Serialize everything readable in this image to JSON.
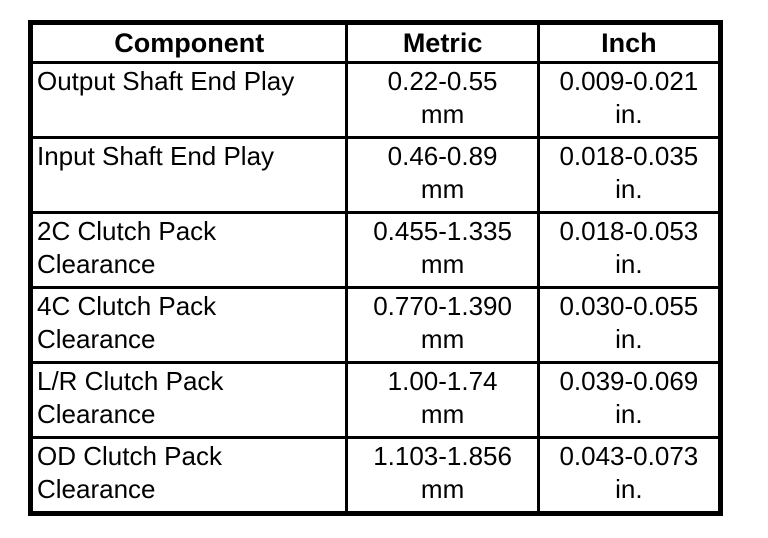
{
  "page": {
    "background": "#ffffff",
    "text_color": "#000000",
    "border_color": "#000000"
  },
  "table": {
    "columns": [
      {
        "label": "Component"
      },
      {
        "label": "Metric"
      },
      {
        "label": "Inch"
      }
    ],
    "rows": [
      {
        "component": "Output Shaft End Play",
        "metric_value": "0.22-0.55",
        "metric_unit": "mm",
        "inch_value": "0.009-0.021",
        "inch_unit": "in."
      },
      {
        "component": "Input Shaft End Play",
        "metric_value": "0.46-0.89",
        "metric_unit": "mm",
        "inch_value": "0.018-0.035",
        "inch_unit": "in."
      },
      {
        "component": "2C Clutch Pack Clearance",
        "metric_value": "0.455-1.335",
        "metric_unit": "mm",
        "inch_value": "0.018-0.053",
        "inch_unit": "in."
      },
      {
        "component": "4C Clutch Pack Clearance",
        "metric_value": "0.770-1.390",
        "metric_unit": "mm",
        "inch_value": "0.030-0.055",
        "inch_unit": "in."
      },
      {
        "component": "L/R Clutch Pack Clearance",
        "metric_value": "1.00-1.74",
        "metric_unit": "mm",
        "inch_value": "0.039-0.069",
        "inch_unit": "in."
      },
      {
        "component": "OD Clutch Pack Clearance",
        "metric_value": "1.103-1.856",
        "metric_unit": "mm",
        "inch_value": "0.043-0.073",
        "inch_unit": "in."
      }
    ]
  },
  "chart_data": {
    "type": "table",
    "title": "",
    "columns": [
      "Component",
      "Metric",
      "Inch"
    ],
    "rows": [
      [
        "Output Shaft End Play",
        "0.22-0.55 mm",
        "0.009-0.021 in."
      ],
      [
        "Input Shaft End Play",
        "0.46-0.89 mm",
        "0.018-0.035 in."
      ],
      [
        "2C Clutch Pack Clearance",
        "0.455-1.335 mm",
        "0.018-0.053 in."
      ],
      [
        "4C Clutch Pack Clearance",
        "0.770-1.390 mm",
        "0.030-0.055 in."
      ],
      [
        "L/R Clutch Pack Clearance",
        "1.00-1.74 mm",
        "0.039-0.069 in."
      ],
      [
        "OD Clutch Pack Clearance",
        "1.103-1.856 mm",
        "0.043-0.073 in."
      ]
    ]
  }
}
